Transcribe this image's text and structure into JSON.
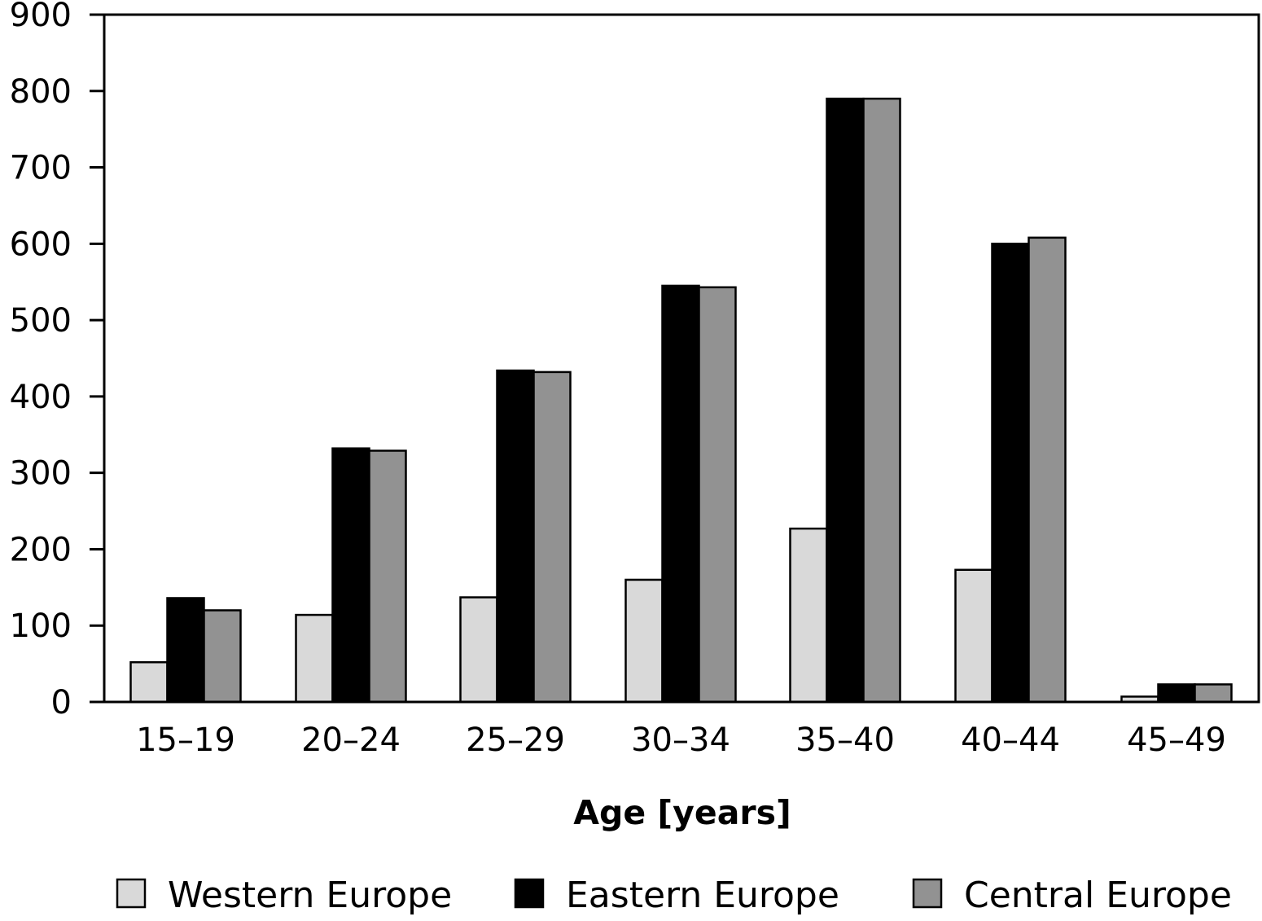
{
  "chart_data": {
    "type": "bar",
    "title": "",
    "xlabel": "Age [years]",
    "ylabel": "",
    "ylim": [
      0,
      900
    ],
    "yticks": [
      0,
      100,
      200,
      300,
      400,
      500,
      600,
      700,
      800,
      900
    ],
    "grid": false,
    "legend_position": "bottom",
    "categories": [
      "15–19",
      "20–24",
      "25–29",
      "30–34",
      "35–40",
      "40–44",
      "45–49"
    ],
    "series": [
      {
        "name": "Western Europe",
        "color": "#d9d9d9",
        "values": [
          52,
          114,
          137,
          160,
          227,
          173,
          7
        ]
      },
      {
        "name": "Eastern Europe",
        "color": "#000000",
        "values": [
          136,
          332,
          434,
          545,
          790,
          600,
          23
        ]
      },
      {
        "name": "Central Europe",
        "color": "#929292",
        "values": [
          120,
          329,
          432,
          543,
          790,
          608,
          23
        ]
      }
    ]
  }
}
